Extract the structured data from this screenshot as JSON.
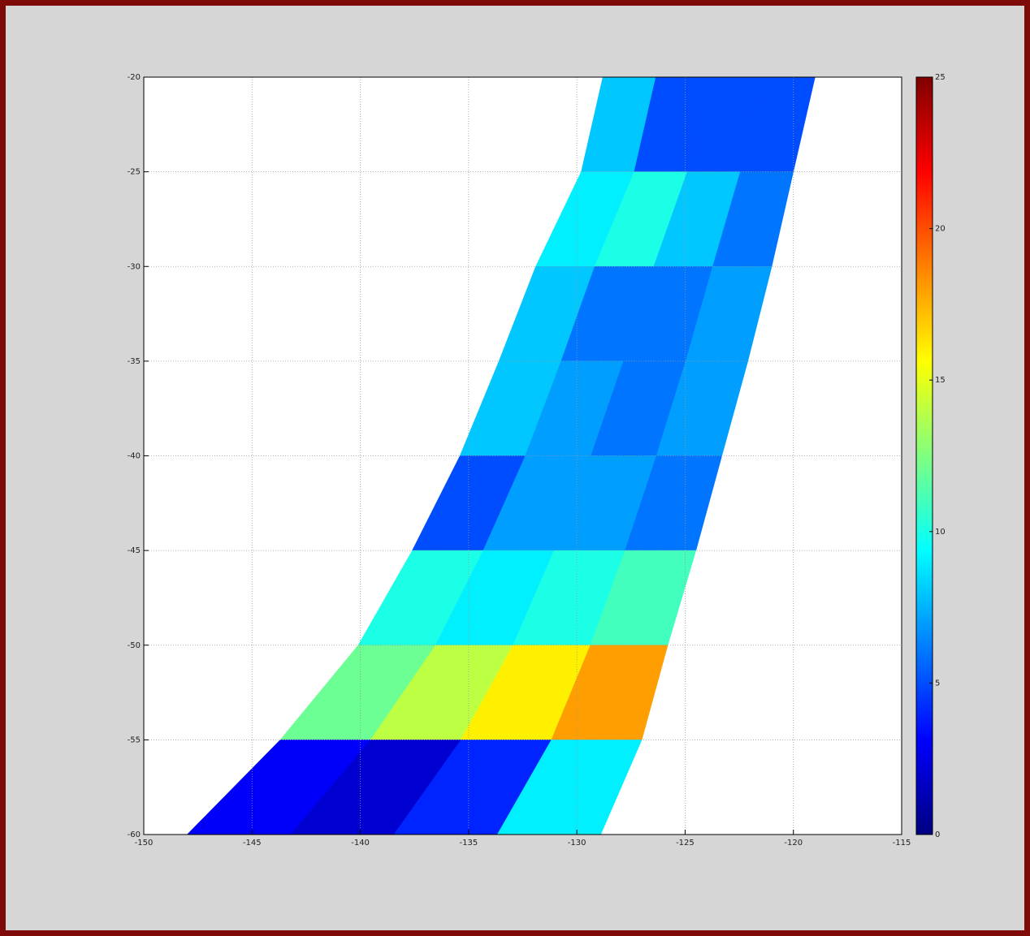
{
  "chart_data": {
    "type": "swath",
    "xlim": [
      -150,
      -115
    ],
    "xticks": [
      -150,
      -145,
      -140,
      -135,
      -130,
      -125,
      -120,
      -115
    ],
    "ylim": [
      -60,
      -20
    ],
    "yticks": [
      -60,
      -55,
      -50,
      -45,
      -40,
      -35,
      -30,
      -25,
      -20
    ],
    "grid": true,
    "lat_edges": [
      -20,
      -25,
      -30,
      -35,
      -40,
      -45,
      -50,
      -55,
      -60
    ],
    "left_lon": [
      -128.8,
      -129.8,
      -131.9,
      -133.6,
      -135.4,
      -137.6,
      -140.1,
      -143.7,
      -148.0
    ],
    "right_lon": [
      -119.0,
      -120.0,
      -121.0,
      -122.1,
      -123.3,
      -124.5,
      -125.8,
      -127.0,
      -128.9
    ],
    "values": [
      [
        8,
        5,
        5,
        5
      ],
      [
        9,
        10,
        8,
        6
      ],
      [
        8,
        6,
        6,
        7
      ],
      [
        8,
        7,
        6,
        7
      ],
      [
        5,
        7,
        7,
        6
      ],
      [
        10,
        9,
        10,
        11
      ],
      [
        12,
        14,
        16,
        18
      ],
      [
        3,
        2,
        4,
        9
      ]
    ],
    "colormap": "jet",
    "clim": [
      0,
      25
    ],
    "cticks": [
      0,
      5,
      10,
      15,
      20,
      25
    ]
  }
}
